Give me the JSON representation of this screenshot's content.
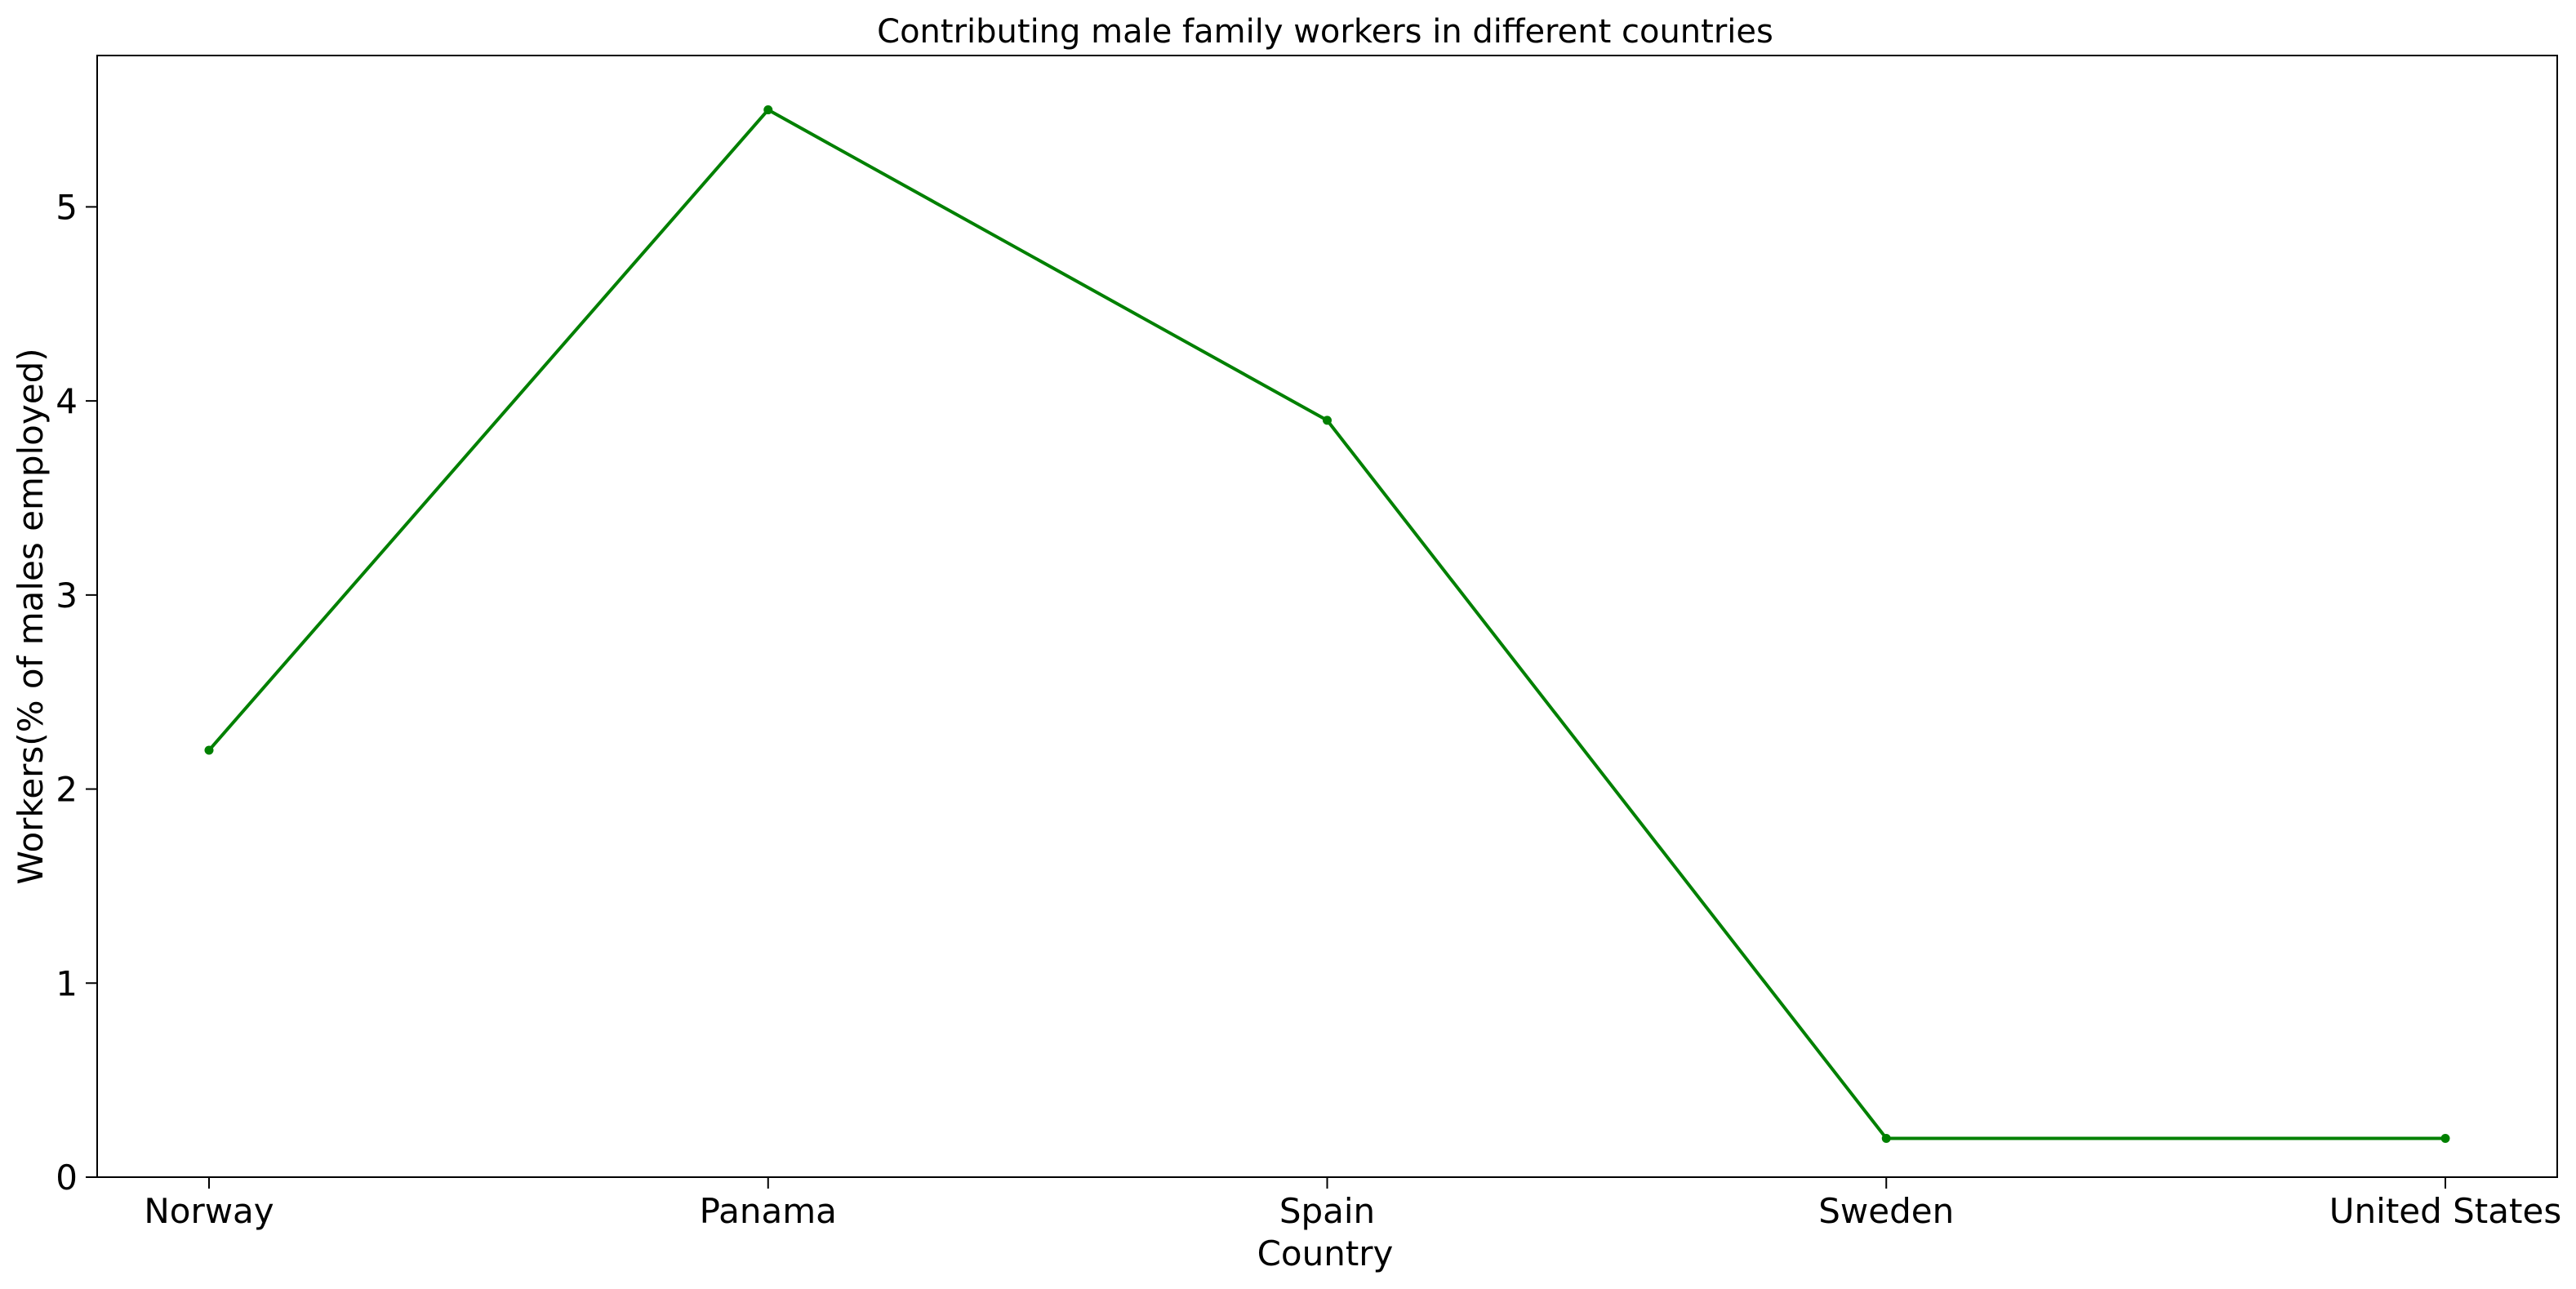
{
  "chart_data": {
    "type": "line",
    "title": "Contributing male family workers in different countries",
    "xlabel": "Country",
    "ylabel": "Workers(% of males employed)",
    "categories": [
      "Norway",
      "Panama",
      "Spain",
      "Sweden",
      "United States"
    ],
    "series": [
      {
        "values": [
          2.2,
          5.5,
          3.9,
          0.2,
          0.2
        ],
        "color": "#008000"
      }
    ],
    "yticks": [
      0,
      1,
      2,
      3,
      4,
      5
    ],
    "ylim": [
      0,
      5.78
    ],
    "grid": false,
    "legend": "none"
  }
}
